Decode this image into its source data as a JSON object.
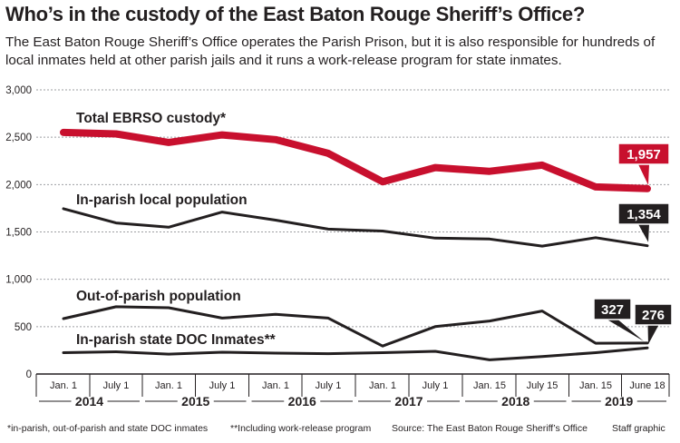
{
  "header": {
    "title": "Who’s in the custody of the East Baton Rouge Sheriff’s Office?",
    "subtitle": "The East Baton Rouge Sheriff’s Office operates the Parish Prison, but it is also responsible for hundreds of local inmates held at other parish jails and it runs a work-release program for state inmates."
  },
  "chart_data": {
    "type": "line",
    "title": "Who’s in the custody of the East Baton Rouge Sheriff’s Office?",
    "ylim": [
      0,
      3000
    ],
    "y_ticks": [
      "3,000",
      "2,500",
      "2,000",
      "1,500",
      "1,000",
      "500",
      "0"
    ],
    "grid": true,
    "categories": [
      "Jan. 1",
      "July 1",
      "Jan. 1",
      "July 1",
      "Jan. 1",
      "July 1",
      "Jan. 1",
      "July 1",
      "Jan. 15",
      "July 15",
      "Jan. 15",
      "June 18"
    ],
    "years": [
      "2014",
      "2015",
      "2016",
      "2017",
      "2018",
      "2019"
    ],
    "series": [
      {
        "name": "Total EBRSO custody*",
        "color": "#c8102e",
        "values": [
          2550,
          2535,
          2445,
          2525,
          2475,
          2330,
          2030,
          2180,
          2140,
          2205,
          1975,
          1957
        ],
        "callout": "1,957"
      },
      {
        "name": "In-parish local population",
        "color": "#231f20",
        "values": [
          1745,
          1595,
          1550,
          1710,
          1625,
          1530,
          1510,
          1435,
          1425,
          1350,
          1440,
          1354
        ],
        "callout": "1,354"
      },
      {
        "name": "Out-of-parish population",
        "color": "#231f20",
        "values": [
          585,
          710,
          700,
          590,
          630,
          590,
          295,
          500,
          560,
          665,
          325,
          327
        ],
        "callout": "327"
      },
      {
        "name": "In-parish state DOC Inmates**",
        "color": "#231f20",
        "values": [
          225,
          235,
          210,
          230,
          220,
          215,
          225,
          240,
          150,
          185,
          225,
          276
        ],
        "callout": "276"
      }
    ]
  },
  "footer": {
    "note1": "*in-parish, out-of-parish and state DOC inmates",
    "note2": "**Including work-release program",
    "source": "Source: The East Baton Rouge Sheriff’s Office",
    "credit": "Staff graphic"
  }
}
